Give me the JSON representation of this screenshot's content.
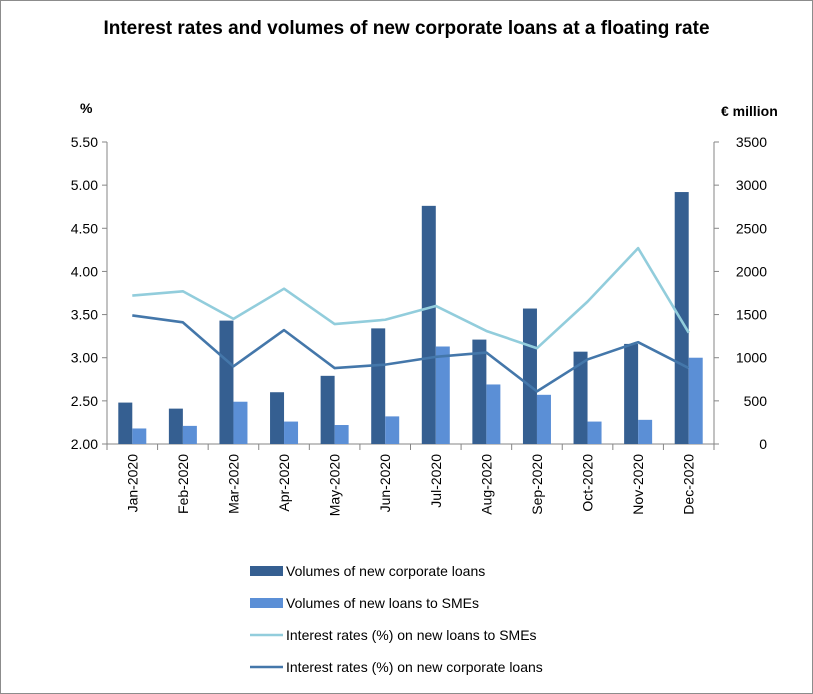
{
  "title": "Interest rates and volumes of new corporate loans at a floating rate",
  "colors": {
    "corporate_volume": "#355f91",
    "sme_volume": "#5b8fd6",
    "sme_rate": "#92cddc",
    "corporate_rate": "#4477aa",
    "axis": "#868686",
    "grid": "#d9d9d9"
  },
  "chart_data": {
    "type": "bar",
    "categories": [
      "Jan-2020",
      "Feb-2020",
      "Mar-2020",
      "Apr-2020",
      "May-2020",
      "Jun-2020",
      "Jul-2020",
      "Aug-2020",
      "Sep-2020",
      "Oct-2020",
      "Nov-2020",
      "Dec-2020"
    ],
    "ylabel_left": "%",
    "ylabel_right": "€ million",
    "ylim_left": [
      2.0,
      5.5
    ],
    "ylim_right": [
      0,
      3500
    ],
    "left_ticks": [
      "2.00",
      "2.50",
      "3.00",
      "3.50",
      "4.00",
      "4.50",
      "5.00",
      "5.50"
    ],
    "right_ticks": [
      "0",
      "500",
      "1000",
      "1500",
      "2000",
      "2500",
      "3000",
      "3500"
    ],
    "grid": false,
    "legend_position": "bottom",
    "series": [
      {
        "name": "Volumes of new corporate loans",
        "type": "bar",
        "axis": "right",
        "values": [
          480,
          410,
          1430,
          600,
          790,
          1340,
          2760,
          1210,
          1570,
          1070,
          1160,
          2920
        ]
      },
      {
        "name": "Volumes of new loans to SMEs",
        "type": "bar",
        "axis": "right",
        "values": [
          180,
          210,
          490,
          260,
          220,
          320,
          1130,
          690,
          570,
          260,
          280,
          1000
        ]
      },
      {
        "name": "Interest rates (%) on new loans to SMEs",
        "type": "line",
        "axis": "left",
        "values": [
          3.72,
          3.77,
          3.45,
          3.8,
          3.39,
          3.44,
          3.6,
          3.31,
          3.11,
          3.65,
          4.27,
          3.29
        ]
      },
      {
        "name": "Interest rates (%) on new corporate loans",
        "type": "line",
        "axis": "left",
        "values": [
          3.49,
          3.41,
          2.9,
          3.32,
          2.88,
          2.92,
          3.01,
          3.06,
          2.61,
          2.98,
          3.18,
          2.88
        ]
      }
    ]
  }
}
